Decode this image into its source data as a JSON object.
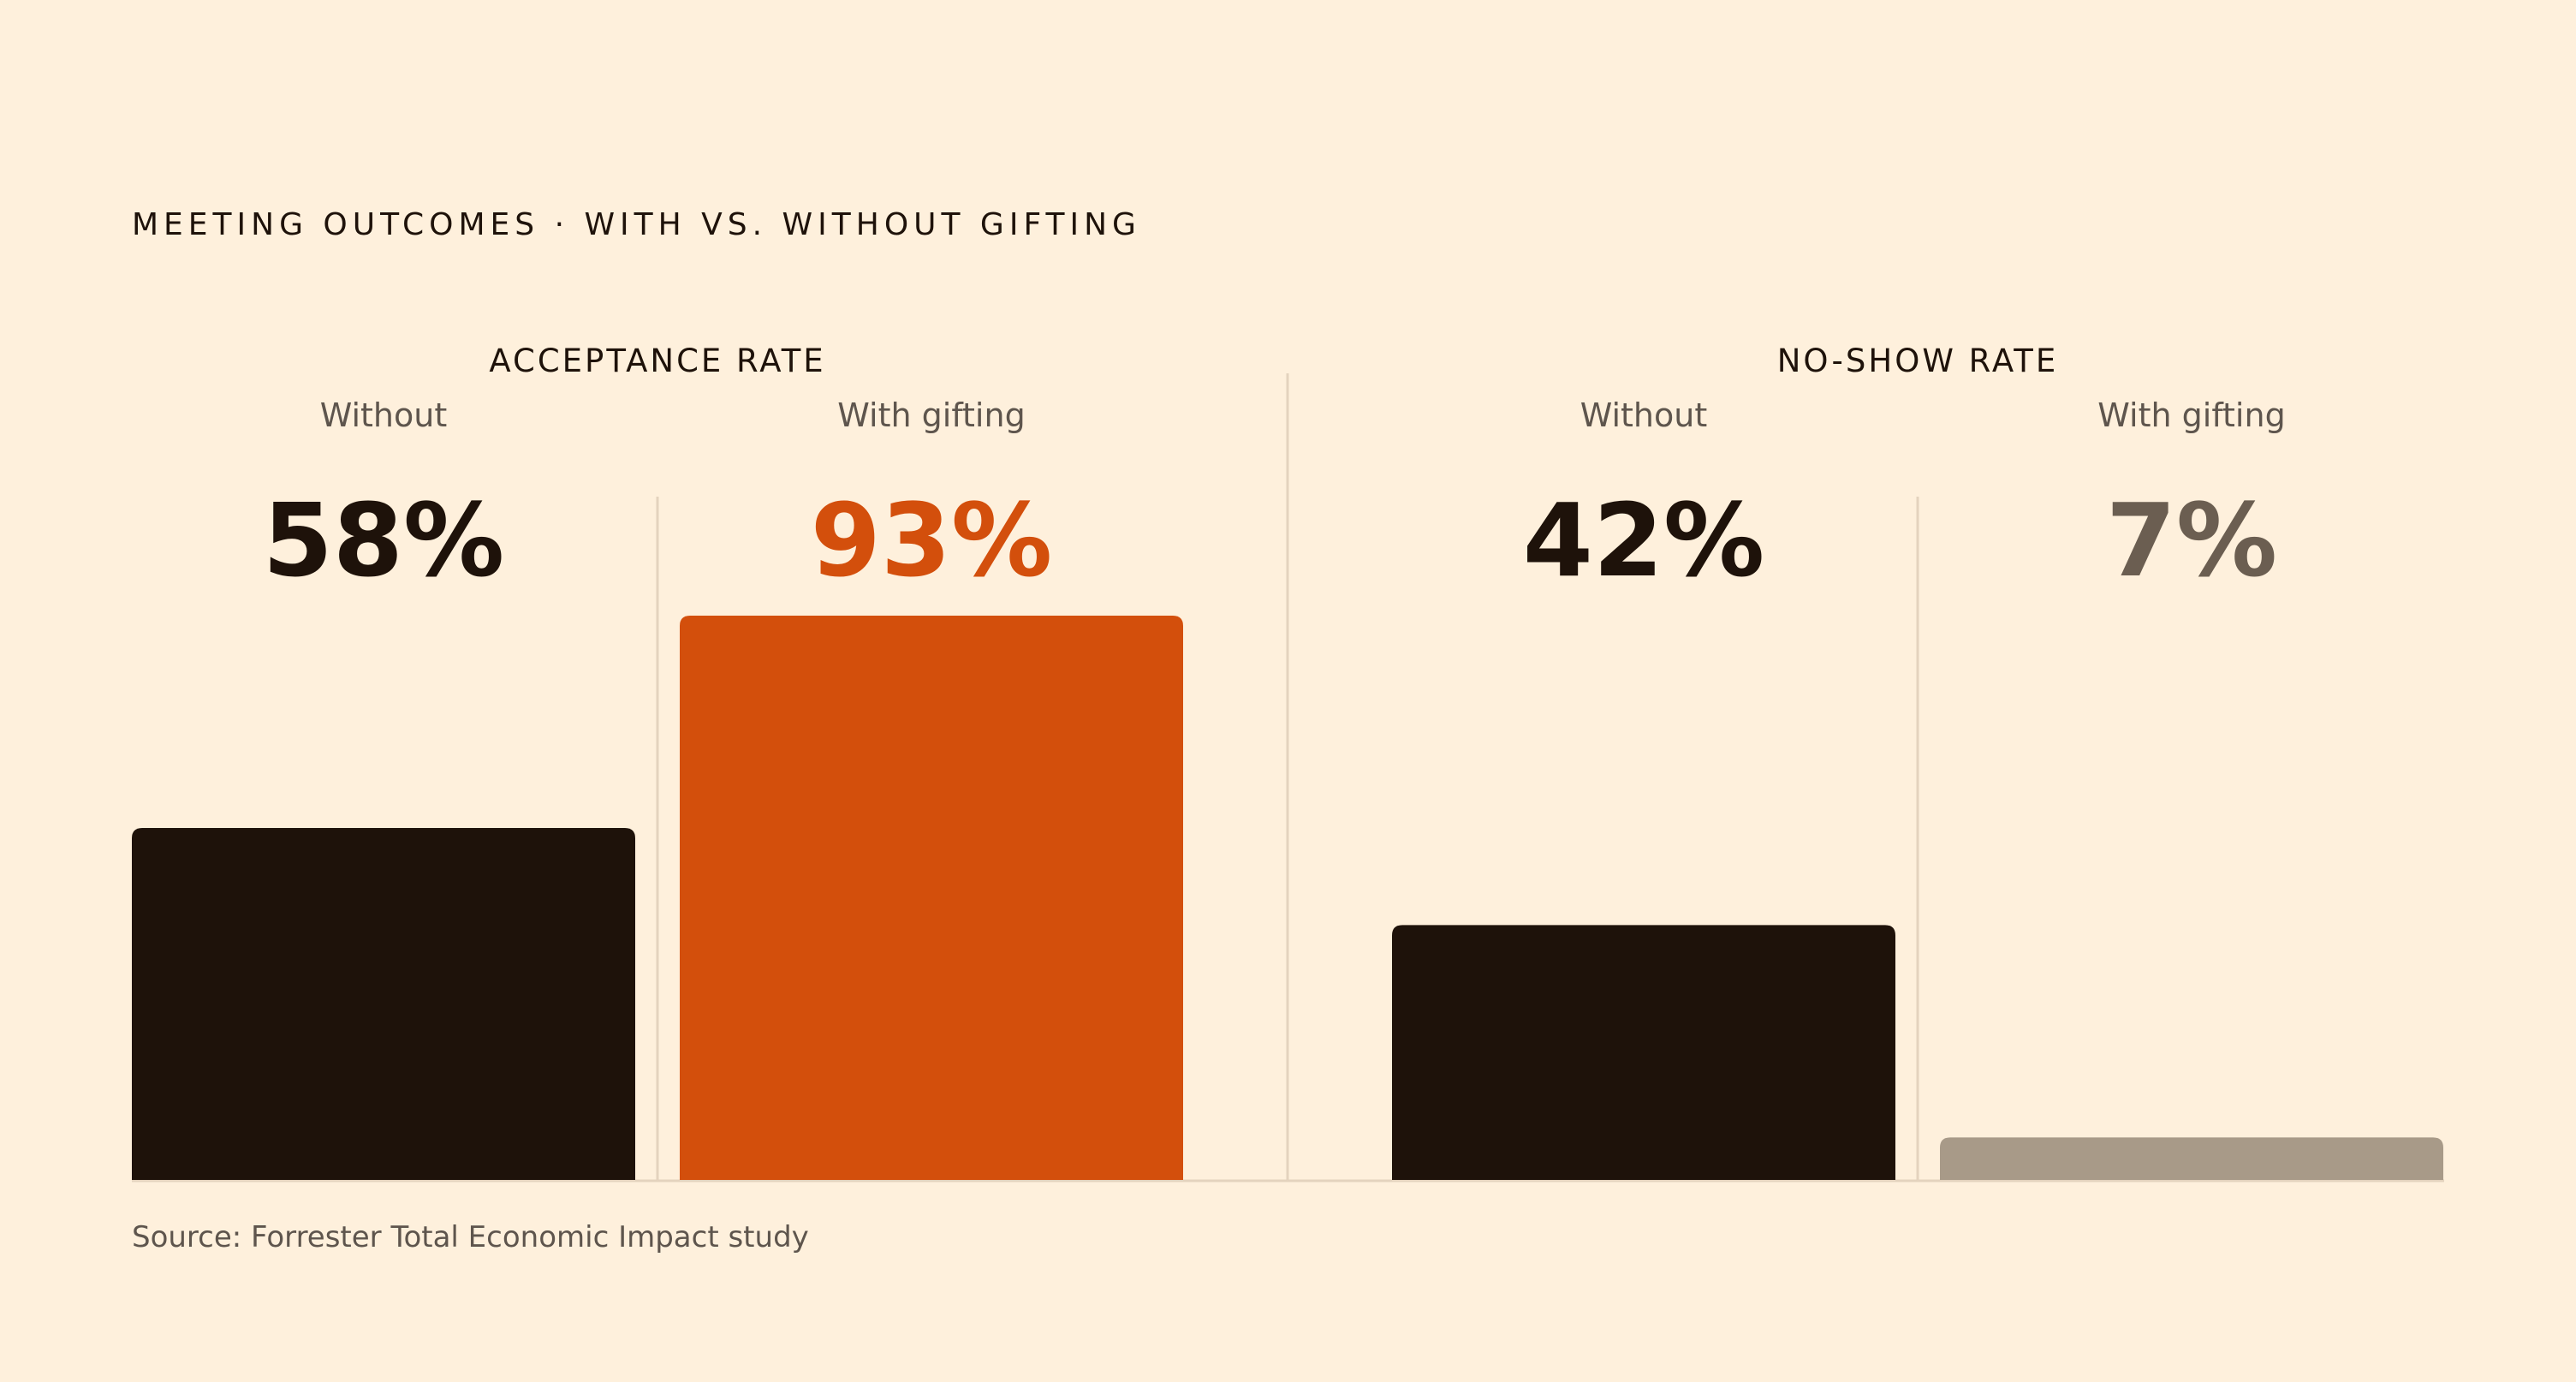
{
  "chart_data": {
    "type": "bar",
    "title": "MEETING OUTCOMES · WITH VS. WITHOUT GIFTING",
    "source": "Source: Forrester Total Economic Impact study",
    "ylim": [
      0,
      93
    ],
    "grid": false,
    "panels": [
      {
        "title": "ACCEPTANCE RATE",
        "categories": [
          "Without",
          "With gifting"
        ],
        "values": [
          58,
          93
        ],
        "value_labels": [
          "58%",
          "93%"
        ],
        "bar_colors": [
          "#1E120A",
          "#D34F0C"
        ],
        "label_colors": [
          "#1E120A",
          "#D34F0C"
        ]
      },
      {
        "title": "NO-SHOW RATE",
        "categories": [
          "Without",
          "With gifting"
        ],
        "values": [
          42,
          7
        ],
        "value_labels": [
          "42%",
          "7%"
        ],
        "bar_colors": [
          "#1E120A",
          "#A89A88"
        ],
        "label_colors": [
          "#1E120A",
          "#6B5E51"
        ]
      }
    ]
  },
  "colors": {
    "background": "#FEF0DC",
    "text_primary": "#1E120A",
    "text_secondary": "#5E554D",
    "divider": "#E4D3BE"
  }
}
